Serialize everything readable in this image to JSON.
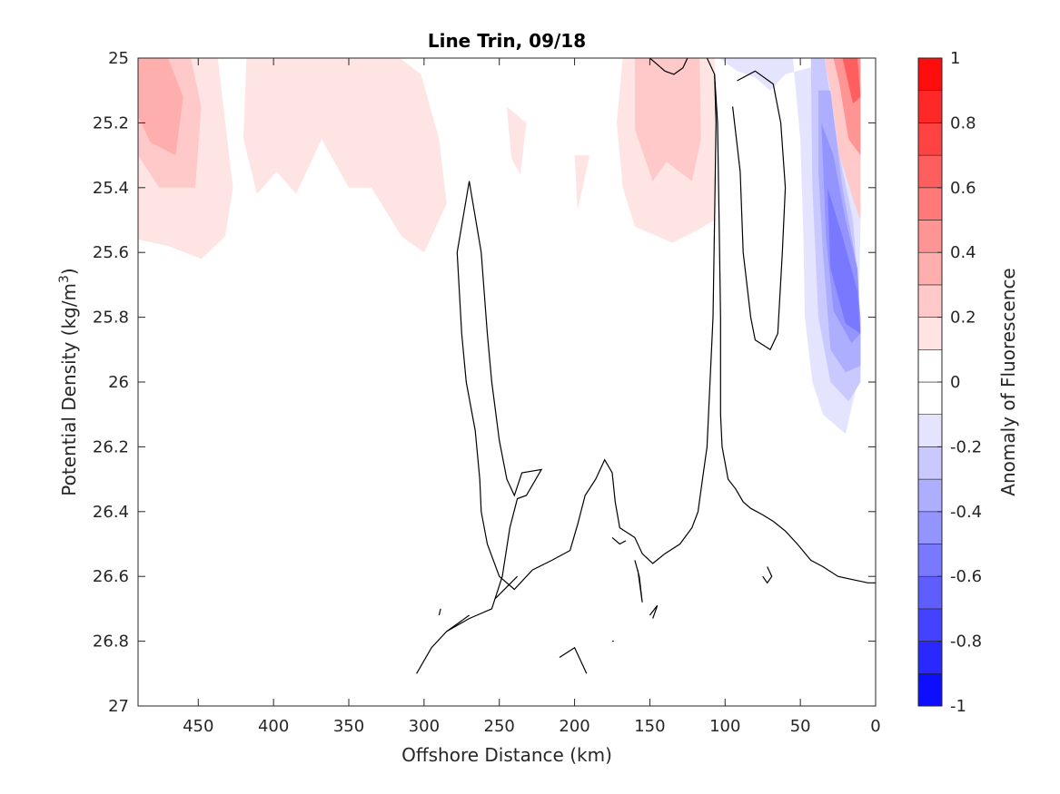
{
  "chart_data": {
    "type": "contour",
    "title": "Line Trin, 09/18",
    "xlabel": "Offshore Distance (km)",
    "ylabel_main": "Potential Density (kg/m",
    "ylabel_sup": "3",
    "ylabel_close": ")",
    "colorbar_label": "Anomaly of Fluorescence",
    "xlim": [
      490,
      0
    ],
    "ylim": [
      25,
      27
    ],
    "x_reversed": true,
    "y_reversed": true,
    "xticks": [
      450,
      400,
      350,
      300,
      250,
      200,
      150,
      100,
      50,
      0
    ],
    "xtick_labels": [
      "450",
      "400",
      "350",
      "300",
      "250",
      "200",
      "150",
      "100",
      "50",
      "0"
    ],
    "yticks": [
      25,
      25.2,
      25.4,
      25.6,
      25.8,
      26,
      26.2,
      26.4,
      26.6,
      26.8,
      27
    ],
    "ytick_labels": [
      "25",
      "25.2",
      "25.4",
      "25.6",
      "25.8",
      "26",
      "26.2",
      "26.4",
      "26.6",
      "26.8",
      "27"
    ],
    "colorbar": {
      "range": [
        -1,
        1
      ],
      "levels": 20,
      "ticks": [
        1,
        0.8,
        0.6,
        0.4,
        0.2,
        0,
        -0.2,
        -0.4,
        -0.6,
        -0.8,
        -1
      ],
      "tick_labels": [
        "1",
        "0.8",
        "0.6",
        "0.4",
        "0.2",
        "0",
        "-0.2",
        "-0.4",
        "-0.6",
        "-0.8",
        "-1"
      ],
      "positive_color": "#ff0000",
      "negative_color": "#0000ff",
      "zero_color": "#ffffff"
    },
    "filled_regions": [
      {
        "level": 0.15,
        "points": [
          [
            490,
            25
          ],
          [
            437,
            25
          ],
          [
            427,
            25.4
          ],
          [
            432,
            25.55
          ],
          [
            448,
            25.62
          ],
          [
            470,
            25.58
          ],
          [
            490,
            25.56
          ]
        ]
      },
      {
        "level": 0.25,
        "points": [
          [
            490,
            25
          ],
          [
            455,
            25
          ],
          [
            448,
            25.15
          ],
          [
            452,
            25.4
          ],
          [
            476,
            25.4
          ],
          [
            490,
            25.3
          ]
        ]
      },
      {
        "level": 0.35,
        "points": [
          [
            490,
            25
          ],
          [
            470,
            25
          ],
          [
            460,
            25.12
          ],
          [
            465,
            25.3
          ],
          [
            482,
            25.26
          ],
          [
            490,
            25.18
          ]
        ]
      },
      {
        "level": 0.15,
        "points": [
          [
            418,
            25
          ],
          [
            380,
            25
          ],
          [
            348,
            25
          ],
          [
            330,
            25
          ],
          [
            316,
            25
          ],
          [
            302,
            25.05
          ],
          [
            290,
            25.25
          ],
          [
            285,
            25.45
          ],
          [
            300,
            25.6
          ],
          [
            315,
            25.55
          ],
          [
            335,
            25.4
          ],
          [
            350,
            25.4
          ],
          [
            368,
            25.25
          ],
          [
            385,
            25.42
          ],
          [
            398,
            25.35
          ],
          [
            411,
            25.42
          ],
          [
            420,
            25.25
          ]
        ]
      },
      {
        "level": 0.15,
        "points": [
          [
            245,
            25.15
          ],
          [
            232,
            25.2
          ],
          [
            236,
            25.36
          ],
          [
            242,
            25.31
          ]
        ]
      },
      {
        "level": 0.15,
        "points": [
          [
            200,
            25.3
          ],
          [
            190,
            25.3
          ],
          [
            198,
            25.47
          ]
        ]
      },
      {
        "level": 0.15,
        "points": [
          [
            168,
            25
          ],
          [
            107,
            25
          ],
          [
            106,
            25.3
          ],
          [
            107,
            25.5
          ],
          [
            118,
            25.53
          ],
          [
            135,
            25.57
          ],
          [
            160,
            25.52
          ],
          [
            168,
            25.4
          ],
          [
            172,
            25.2
          ]
        ]
      },
      {
        "level": 0.25,
        "points": [
          [
            160,
            25
          ],
          [
            117,
            25
          ],
          [
            116,
            25.25
          ],
          [
            122,
            25.38
          ],
          [
            139,
            25.32
          ],
          [
            148,
            25.38
          ],
          [
            160,
            25.22
          ]
        ]
      },
      {
        "level": -0.15,
        "points": [
          [
            104,
            25
          ],
          [
            55,
            25
          ],
          [
            50,
            25.25
          ],
          [
            48,
            25.55
          ],
          [
            47,
            25.8
          ],
          [
            42,
            26.0
          ],
          [
            35,
            26.1
          ],
          [
            20,
            26.16
          ],
          [
            12,
            26.0
          ],
          [
            10,
            25.5
          ],
          [
            20,
            25.0
          ],
          [
            60,
            25.05
          ],
          [
            70,
            25.1
          ],
          [
            80,
            25.06
          ],
          [
            92,
            25.04
          ]
        ]
      },
      {
        "level": -0.25,
        "points": [
          [
            43,
            25
          ],
          [
            34,
            25
          ],
          [
            24,
            25.3
          ],
          [
            15,
            25.5
          ],
          [
            10,
            25.8
          ],
          [
            10,
            26.0
          ],
          [
            18,
            26.06
          ],
          [
            30,
            26.0
          ],
          [
            38,
            25.8
          ],
          [
            42,
            25.4
          ]
        ]
      },
      {
        "level": -0.35,
        "points": [
          [
            38,
            25.1
          ],
          [
            30,
            25.1
          ],
          [
            22,
            25.4
          ],
          [
            14,
            25.6
          ],
          [
            10,
            25.8
          ],
          [
            10,
            25.95
          ],
          [
            20,
            25.97
          ],
          [
            30,
            25.9
          ],
          [
            35,
            25.6
          ],
          [
            38,
            25.35
          ]
        ]
      },
      {
        "level": -0.45,
        "points": [
          [
            36,
            25.2
          ],
          [
            28,
            25.3
          ],
          [
            20,
            25.5
          ],
          [
            12,
            25.65
          ],
          [
            10,
            25.85
          ],
          [
            16,
            25.88
          ],
          [
            28,
            25.78
          ],
          [
            33,
            25.55
          ]
        ]
      },
      {
        "level": -0.55,
        "points": [
          [
            32,
            25.4
          ],
          [
            22,
            25.55
          ],
          [
            12,
            25.72
          ],
          [
            10,
            25.85
          ],
          [
            20,
            25.82
          ],
          [
            30,
            25.65
          ]
        ]
      },
      {
        "level": 0.25,
        "points": [
          [
            34,
            25
          ],
          [
            10,
            25
          ],
          [
            10,
            25.5
          ],
          [
            14,
            25.45
          ],
          [
            24,
            25.3
          ],
          [
            30,
            25.1
          ]
        ]
      },
      {
        "level": 0.45,
        "points": [
          [
            28,
            25
          ],
          [
            10,
            25
          ],
          [
            10,
            25.3
          ],
          [
            18,
            25.25
          ],
          [
            24,
            25.08
          ]
        ]
      },
      {
        "level": 0.65,
        "points": [
          [
            22,
            25
          ],
          [
            12,
            25
          ],
          [
            10,
            25.12
          ],
          [
            15,
            25.14
          ]
        ]
      }
    ],
    "zero_contours": [
      [
        [
          112,
          25
        ],
        [
          107,
          25.05
        ],
        [
          105,
          25.2
        ],
        [
          104,
          25.5
        ],
        [
          103,
          25.8
        ],
        [
          103,
          26.1
        ],
        [
          102,
          26.2
        ],
        [
          98,
          26.3
        ],
        [
          93,
          26.33
        ],
        [
          88,
          26.37
        ],
        [
          83,
          26.39
        ],
        [
          75,
          26.41
        ],
        [
          68,
          26.43
        ],
        [
          60,
          26.46
        ],
        [
          52,
          26.5
        ],
        [
          43,
          26.55
        ],
        [
          35,
          26.57
        ],
        [
          25,
          26.6
        ],
        [
          15,
          26.61
        ],
        [
          5,
          26.62
        ],
        [
          0,
          26.62
        ]
      ],
      [
        [
          95,
          25.15
        ],
        [
          90,
          25.35
        ],
        [
          88,
          25.6
        ],
        [
          83,
          25.8
        ],
        [
          80,
          25.87
        ],
        [
          70,
          25.9
        ],
        [
          65,
          25.85
        ],
        [
          62,
          25.6
        ],
        [
          60,
          25.4
        ],
        [
          63,
          25.2
        ],
        [
          68,
          25.08
        ],
        [
          80,
          25.04
        ],
        [
          92,
          25.07
        ]
      ],
      [
        [
          270,
          25.38
        ],
        [
          278,
          25.6
        ],
        [
          275,
          25.85
        ],
        [
          272,
          26.0
        ],
        [
          266,
          26.15
        ],
        [
          263,
          26.3
        ],
        [
          262,
          26.4
        ],
        [
          258,
          26.5
        ],
        [
          250,
          26.6
        ],
        [
          240,
          26.64
        ],
        [
          228,
          26.58
        ],
        [
          215,
          26.55
        ],
        [
          203,
          26.52
        ],
        [
          198,
          26.44
        ],
        [
          193,
          26.35
        ],
        [
          186,
          26.3
        ],
        [
          180,
          26.24
        ],
        [
          175,
          26.28
        ],
        [
          173,
          26.37
        ],
        [
          170,
          26.45
        ],
        [
          160,
          26.48
        ],
        [
          155,
          26.53
        ],
        [
          148,
          26.56
        ],
        [
          140,
          26.53
        ],
        [
          130,
          26.5
        ],
        [
          122,
          26.45
        ],
        [
          118,
          26.4
        ],
        [
          115,
          26.3
        ],
        [
          112,
          26.2
        ],
        [
          110,
          26.0
        ],
        [
          108,
          25.8
        ],
        [
          107,
          25.5
        ],
        [
          106,
          25.2
        ],
        [
          107,
          25.05
        ]
      ],
      [
        [
          270,
          25.38
        ],
        [
          262,
          25.6
        ],
        [
          258,
          25.85
        ],
        [
          255,
          26.0
        ],
        [
          250,
          26.18
        ],
        [
          245,
          26.3
        ],
        [
          240,
          26.35
        ],
        [
          235,
          26.28
        ],
        [
          222,
          26.27
        ],
        [
          232,
          26.35
        ],
        [
          238,
          26.36
        ],
        [
          243,
          26.45
        ],
        [
          248,
          26.6
        ],
        [
          255,
          26.7
        ],
        [
          270,
          26.73
        ],
        [
          285,
          26.77
        ],
        [
          295,
          26.82
        ],
        [
          305,
          26.9
        ]
      ],
      [
        [
          253,
          26.67
        ],
        [
          238,
          26.6
        ]
      ],
      [
        [
          150,
          25
        ],
        [
          145,
          25.02
        ],
        [
          140,
          25.04
        ],
        [
          134,
          25.05
        ],
        [
          128,
          25.03
        ],
        [
          125,
          25.0
        ]
      ],
      [
        [
          210,
          26.85
        ],
        [
          200,
          26.82
        ],
        [
          192,
          26.9
        ]
      ],
      [
        [
          270,
          26.72
        ],
        [
          285,
          26.77
        ]
      ],
      [
        [
          175,
          26.48
        ],
        [
          170,
          26.5
        ],
        [
          166,
          26.49
        ]
      ],
      [
        [
          160,
          26.55
        ],
        [
          157,
          26.6
        ],
        [
          155,
          26.68
        ],
        [
          158,
          26.58
        ]
      ],
      [
        [
          150,
          26.72
        ],
        [
          145,
          26.69
        ],
        [
          148,
          26.73
        ]
      ],
      [
        [
          72,
          26.57
        ],
        [
          69,
          26.6
        ],
        [
          72,
          26.62
        ],
        [
          75,
          26.6
        ]
      ],
      [
        [
          289,
          26.7
        ],
        [
          290,
          26.72
        ]
      ],
      [
        [
          174,
          26.8
        ],
        [
          175,
          26.8
        ]
      ]
    ]
  }
}
